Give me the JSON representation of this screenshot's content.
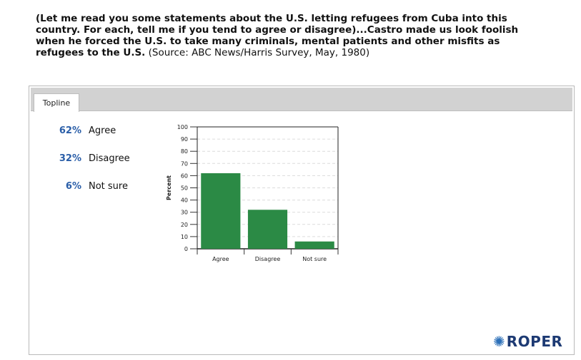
{
  "question": {
    "bold_text": "(Let me read you some statements about the U.S. letting refugees from Cuba into this country. For each, tell me if you tend to agree or disagree)...Castro made us look foolish when he forced the U.S. to take many criminals, mental patients and other misfits as refugees to the U.S.",
    "source_text": " (Source: ABC News/Harris Survey, May, 1980)"
  },
  "tab": {
    "label": "Topline"
  },
  "results": [
    {
      "pct": "62%",
      "label": "Agree"
    },
    {
      "pct": "32%",
      "label": "Disagree"
    },
    {
      "pct": "6%",
      "label": "Not sure"
    }
  ],
  "chart_data": {
    "type": "bar",
    "categories": [
      "Agree",
      "Disagree",
      "Not sure"
    ],
    "values": [
      62,
      32,
      6
    ],
    "ylabel": "Percent",
    "xlabel": "",
    "ylim": [
      0,
      100
    ],
    "yticks": [
      0,
      10,
      20,
      30,
      40,
      50,
      60,
      70,
      80,
      90,
      100
    ],
    "grid": true,
    "bar_color": "#2b8a45"
  },
  "logo": {
    "text": "ROPER",
    "icon": "roper-starburst-icon"
  }
}
